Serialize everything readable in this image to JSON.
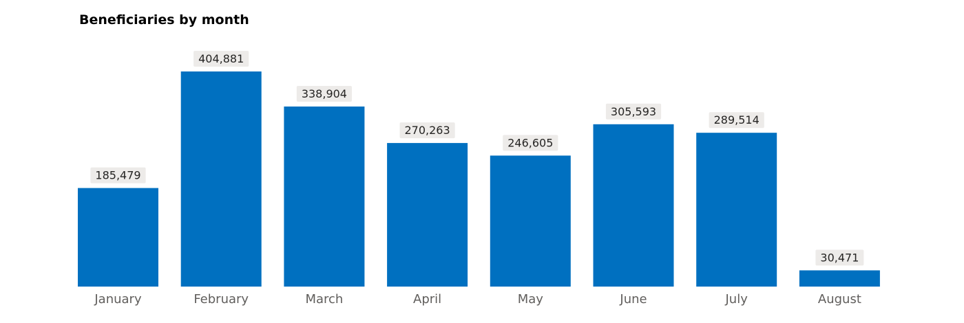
{
  "chart_data": {
    "type": "bar",
    "title": "Beneficiaries by month",
    "categories": [
      "January",
      "February",
      "March",
      "April",
      "May",
      "June",
      "July",
      "August"
    ],
    "values": [
      185479,
      404881,
      338904,
      270263,
      246605,
      305593,
      289514,
      30471
    ],
    "data_labels": [
      "185,479",
      "404,881",
      "338,904",
      "270,263",
      "246,605",
      "305,593",
      "289,514",
      "30,471"
    ],
    "xlabel": "",
    "ylabel": "",
    "ylim": [
      0,
      404881
    ],
    "grid": false,
    "legend": "none",
    "colors": {
      "bar": "#0070C0",
      "label_background": "#EDEBE9",
      "label_text": "#252423",
      "axis_text": "#605E5C"
    }
  }
}
